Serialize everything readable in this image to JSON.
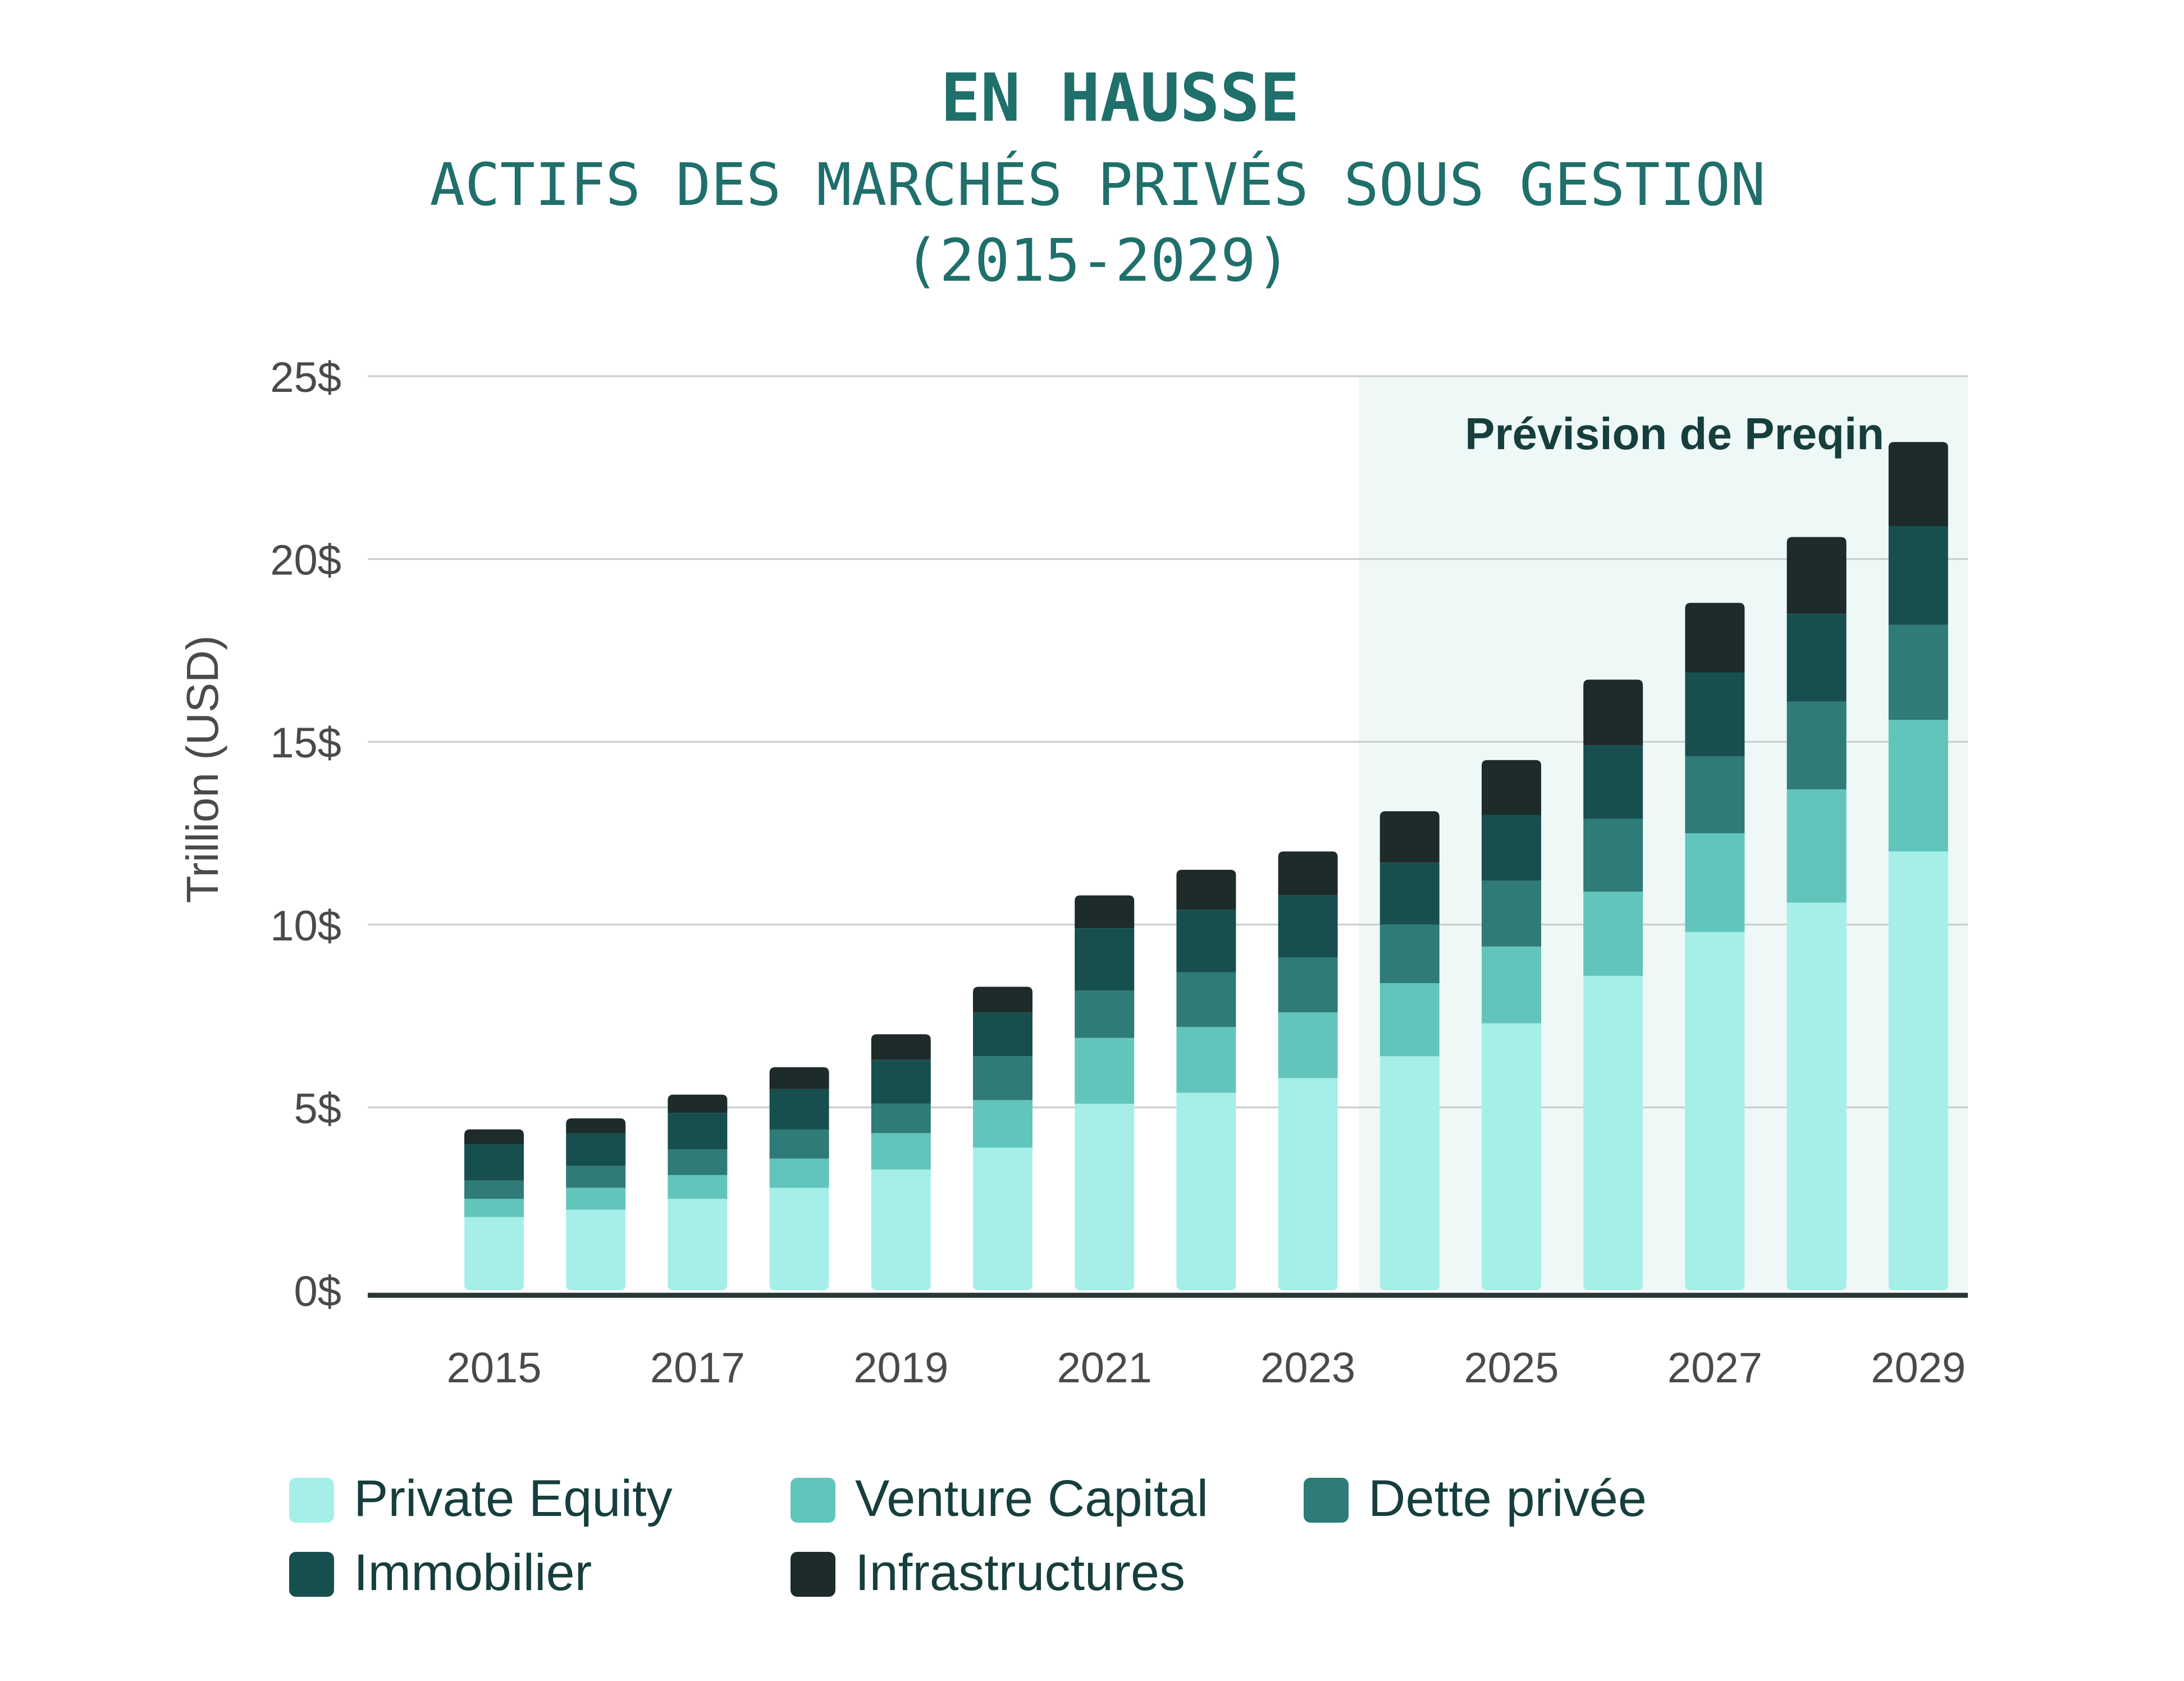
{
  "title": "EN HAUSSE",
  "subtitle_line1": "ACTIFS DES MARCHÉS PRIVÉS SOUS GESTION",
  "subtitle_line2": "(2015-2029)",
  "forecast_label": "Prévision de Preqin",
  "chart_data": {
    "type": "bar",
    "stacked": true,
    "title": "EN HAUSSE",
    "subtitle": "ACTIFS DES MARCHÉS PRIVÉS SOUS GESTION (2015-2029)",
    "xlabel": "",
    "ylabel": "Trillion (USD)",
    "ylim": [
      0,
      25
    ],
    "yticks": [
      0,
      5,
      10,
      15,
      20,
      25
    ],
    "ytick_labels": [
      "0$",
      "5$",
      "10$",
      "15$",
      "20$",
      "25$"
    ],
    "categories": [
      "2015",
      "2016",
      "2017",
      "2018",
      "2019",
      "2020",
      "2021",
      "2022",
      "2023",
      "2024",
      "2025",
      "2026",
      "2027",
      "2028",
      "2029"
    ],
    "xtick_labels": [
      "2015",
      "2017",
      "2019",
      "2021",
      "2023",
      "2025",
      "2027",
      "2029"
    ],
    "forecast_start": "2024",
    "forecast_annotation": "Prévision de Preqin",
    "grid": true,
    "legend_position": "bottom",
    "series": [
      {
        "name": "Private Equity",
        "color": "#a6efe9",
        "values": [
          2.0,
          2.2,
          2.5,
          2.8,
          3.3,
          3.9,
          5.1,
          5.4,
          5.8,
          6.4,
          7.3,
          8.6,
          9.8,
          10.6,
          12.0
        ]
      },
      {
        "name": "Venture Capital",
        "color": "#62c5bc",
        "values": [
          0.5,
          0.6,
          0.65,
          0.8,
          1.0,
          1.3,
          1.8,
          1.8,
          1.8,
          2.0,
          2.1,
          2.3,
          2.7,
          3.1,
          3.6
        ]
      },
      {
        "name": "Dette privée",
        "color": "#2e7b77",
        "values": [
          0.5,
          0.6,
          0.7,
          0.8,
          0.8,
          1.2,
          1.3,
          1.5,
          1.5,
          1.6,
          1.8,
          2.0,
          2.1,
          2.4,
          2.6
        ]
      },
      {
        "name": "Immobilier",
        "color": "#174f4f",
        "values": [
          1.0,
          0.9,
          1.0,
          1.1,
          1.2,
          1.2,
          1.7,
          1.7,
          1.7,
          1.7,
          1.8,
          2.0,
          2.3,
          2.4,
          2.7
        ]
      },
      {
        "name": "Infrastructures",
        "color": "#1e2b2b",
        "values": [
          0.4,
          0.4,
          0.5,
          0.6,
          0.7,
          0.7,
          0.9,
          1.1,
          1.2,
          1.4,
          1.5,
          1.8,
          1.9,
          2.1,
          2.3
        ]
      }
    ]
  },
  "colors": {
    "title": "#1f6f6b",
    "forecast_band": "#eef8f6",
    "grid": "#c8cccc",
    "axis": "#2a3535",
    "tick_text": "#4a4a4a"
  }
}
